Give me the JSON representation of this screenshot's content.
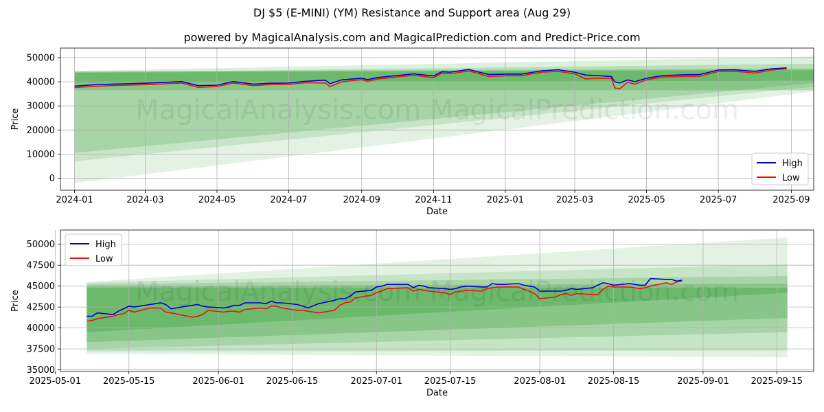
{
  "title": "DJ $5 (E-MINI) (YM) Resistance and Support area (Aug 29)",
  "subtitle": "powered by MagicalAnalysis.com and MagicalPrediction.com and Predict-Price.com",
  "watermark": "MagicalAnalysis.com    MagicalPrediction.com",
  "colors": {
    "high": "#0000cc",
    "low": "#ee1111",
    "band": "#2e9a2e",
    "grid": "#b0b0b0"
  },
  "chart_data": [
    {
      "type": "line",
      "xlabel": "Date",
      "ylabel": "Price",
      "xlim": [
        "2023-12-20",
        "2025-09-20"
      ],
      "ylim": [
        -5000,
        54000
      ],
      "x_ticks": [
        "2024-01",
        "2024-03",
        "2024-05",
        "2024-07",
        "2024-09",
        "2024-11",
        "2025-01",
        "2025-03",
        "2025-05",
        "2025-07",
        "2025-09"
      ],
      "x_tick_dates": [
        "2024-01-01",
        "2024-03-01",
        "2024-05-01",
        "2024-07-01",
        "2024-09-01",
        "2024-11-01",
        "2025-01-01",
        "2025-03-01",
        "2025-05-01",
        "2025-07-01",
        "2025-09-01"
      ],
      "y_ticks": [
        0,
        10000,
        20000,
        30000,
        40000,
        50000
      ],
      "grid": true,
      "legend": "bottom-right",
      "series": [
        {
          "name": "High",
          "x": [
            "2024-01-01",
            "2024-01-15",
            "2024-02-01",
            "2024-02-15",
            "2024-03-01",
            "2024-03-15",
            "2024-04-01",
            "2024-04-15",
            "2024-05-01",
            "2024-05-15",
            "2024-06-01",
            "2024-06-15",
            "2024-07-01",
            "2024-07-15",
            "2024-08-01",
            "2024-08-05",
            "2024-08-15",
            "2024-09-01",
            "2024-09-06",
            "2024-09-15",
            "2024-10-01",
            "2024-10-15",
            "2024-11-01",
            "2024-11-08",
            "2024-11-15",
            "2024-12-01",
            "2024-12-18",
            "2025-01-01",
            "2025-01-15",
            "2025-02-01",
            "2025-02-15",
            "2025-03-01",
            "2025-03-10",
            "2025-03-20",
            "2025-04-01",
            "2025-04-04",
            "2025-04-08",
            "2025-04-15",
            "2025-04-21",
            "2025-05-01",
            "2025-05-15",
            "2025-06-01",
            "2025-06-15",
            "2025-07-01",
            "2025-07-15",
            "2025-08-01",
            "2025-08-15",
            "2025-08-28"
          ],
          "values": [
            38200,
            38700,
            39000,
            39200,
            39400,
            39700,
            40100,
            38400,
            38600,
            40100,
            39000,
            39400,
            39500,
            40200,
            40700,
            39200,
            40800,
            41500,
            40900,
            41800,
            42600,
            43300,
            42400,
            44200,
            44000,
            45100,
            43000,
            43200,
            43200,
            44600,
            45000,
            44000,
            42800,
            42600,
            42200,
            40000,
            39500,
            40800,
            40000,
            41500,
            42600,
            42900,
            43000,
            44900,
            45000,
            44300,
            45400,
            45800
          ]
        },
        {
          "name": "Low",
          "x": [
            "2024-01-01",
            "2024-01-15",
            "2024-02-01",
            "2024-02-15",
            "2024-03-01",
            "2024-03-15",
            "2024-04-01",
            "2024-04-15",
            "2024-05-01",
            "2024-05-15",
            "2024-06-01",
            "2024-06-15",
            "2024-07-01",
            "2024-07-15",
            "2024-08-01",
            "2024-08-05",
            "2024-08-15",
            "2024-09-01",
            "2024-09-06",
            "2024-09-15",
            "2024-10-01",
            "2024-10-15",
            "2024-11-01",
            "2024-11-08",
            "2024-11-15",
            "2024-12-01",
            "2024-12-18",
            "2025-01-01",
            "2025-01-15",
            "2025-02-01",
            "2025-02-15",
            "2025-03-01",
            "2025-03-10",
            "2025-03-20",
            "2025-04-01",
            "2025-04-04",
            "2025-04-08",
            "2025-04-15",
            "2025-04-21",
            "2025-05-01",
            "2025-05-15",
            "2025-06-01",
            "2025-06-15",
            "2025-07-01",
            "2025-07-15",
            "2025-08-01",
            "2025-08-15",
            "2025-08-28"
          ],
          "values": [
            37600,
            38000,
            38400,
            38600,
            38800,
            39100,
            39500,
            37700,
            38000,
            39500,
            38400,
            38800,
            38900,
            39600,
            39500,
            38000,
            40000,
            40900,
            40200,
            41200,
            42000,
            42700,
            41700,
            43600,
            43300,
            44500,
            42200,
            42500,
            42500,
            44000,
            44300,
            43300,
            41200,
            41500,
            41400,
            37500,
            37000,
            39800,
            39000,
            40800,
            42000,
            42200,
            42300,
            44300,
            44400,
            43600,
            44900,
            45400
          ]
        }
      ]
    },
    {
      "type": "line",
      "xlabel": "Date",
      "ylabel": "Price",
      "xlim": [
        "2025-05-02",
        "2025-09-22"
      ],
      "ylim": [
        34800,
        51700
      ],
      "x_ticks": [
        "2025-05-01",
        "2025-05-15",
        "2025-06-01",
        "2025-06-15",
        "2025-07-01",
        "2025-07-15",
        "2025-08-01",
        "2025-08-15",
        "2025-09-01",
        "2025-09-15"
      ],
      "y_ticks": [
        35000,
        37500,
        40000,
        42500,
        45000,
        47500,
        50000
      ],
      "grid": true,
      "legend": "top-left",
      "series": [
        {
          "name": "High",
          "x": [
            "2025-05-07",
            "2025-05-08",
            "2025-05-09",
            "2025-05-12",
            "2025-05-13",
            "2025-05-14",
            "2025-05-15",
            "2025-05-16",
            "2025-05-19",
            "2025-05-20",
            "2025-05-21",
            "2025-05-22",
            "2025-05-23",
            "2025-05-27",
            "2025-05-28",
            "2025-05-29",
            "2025-05-30",
            "2025-06-02",
            "2025-06-03",
            "2025-06-04",
            "2025-06-05",
            "2025-06-06",
            "2025-06-09",
            "2025-06-10",
            "2025-06-11",
            "2025-06-12",
            "2025-06-13",
            "2025-06-16",
            "2025-06-17",
            "2025-06-18",
            "2025-06-20",
            "2025-06-23",
            "2025-06-24",
            "2025-06-25",
            "2025-06-26",
            "2025-06-27",
            "2025-06-30",
            "2025-07-01",
            "2025-07-02",
            "2025-07-03",
            "2025-07-07",
            "2025-07-08",
            "2025-07-09",
            "2025-07-10",
            "2025-07-11",
            "2025-07-14",
            "2025-07-15",
            "2025-07-16",
            "2025-07-17",
            "2025-07-18",
            "2025-07-21",
            "2025-07-22",
            "2025-07-23",
            "2025-07-24",
            "2025-07-25",
            "2025-07-28",
            "2025-07-29",
            "2025-07-30",
            "2025-07-31",
            "2025-08-01",
            "2025-08-04",
            "2025-08-05",
            "2025-08-06",
            "2025-08-07",
            "2025-08-08",
            "2025-08-11",
            "2025-08-12",
            "2025-08-13",
            "2025-08-14",
            "2025-08-15",
            "2025-08-18",
            "2025-08-19",
            "2025-08-20",
            "2025-08-21",
            "2025-08-22",
            "2025-08-25",
            "2025-08-26",
            "2025-08-27",
            "2025-08-28"
          ],
          "values": [
            41400,
            41400,
            41800,
            41600,
            42000,
            42300,
            42600,
            42500,
            42800,
            42900,
            43000,
            42800,
            42300,
            42700,
            42800,
            42600,
            42500,
            42400,
            42500,
            42700,
            42700,
            43000,
            43000,
            42900,
            43200,
            43000,
            43000,
            42800,
            42600,
            42400,
            42900,
            43300,
            43500,
            43500,
            43800,
            44300,
            44500,
            44900,
            45000,
            45200,
            45200,
            44800,
            45100,
            45000,
            44800,
            44700,
            44600,
            44700,
            44900,
            45000,
            44900,
            44900,
            45300,
            45200,
            45200,
            45300,
            45100,
            45000,
            44900,
            44400,
            44400,
            44400,
            44500,
            44700,
            44600,
            44800,
            45100,
            45400,
            45300,
            45100,
            45300,
            45200,
            45100,
            45100,
            45900,
            45800,
            45800,
            45600,
            45700
          ]
        },
        {
          "name": "Low",
          "x": [
            "2025-05-07",
            "2025-05-08",
            "2025-05-09",
            "2025-05-12",
            "2025-05-13",
            "2025-05-14",
            "2025-05-15",
            "2025-05-16",
            "2025-05-19",
            "2025-05-20",
            "2025-05-21",
            "2025-05-22",
            "2025-05-23",
            "2025-05-27",
            "2025-05-28",
            "2025-05-29",
            "2025-05-30",
            "2025-06-02",
            "2025-06-03",
            "2025-06-04",
            "2025-06-05",
            "2025-06-06",
            "2025-06-09",
            "2025-06-10",
            "2025-06-11",
            "2025-06-12",
            "2025-06-13",
            "2025-06-16",
            "2025-06-17",
            "2025-06-18",
            "2025-06-20",
            "2025-06-23",
            "2025-06-24",
            "2025-06-25",
            "2025-06-26",
            "2025-06-27",
            "2025-06-30",
            "2025-07-01",
            "2025-07-02",
            "2025-07-03",
            "2025-07-07",
            "2025-07-08",
            "2025-07-09",
            "2025-07-10",
            "2025-07-11",
            "2025-07-14",
            "2025-07-15",
            "2025-07-16",
            "2025-07-17",
            "2025-07-18",
            "2025-07-21",
            "2025-07-22",
            "2025-07-23",
            "2025-07-24",
            "2025-07-25",
            "2025-07-28",
            "2025-07-29",
            "2025-07-30",
            "2025-07-31",
            "2025-08-01",
            "2025-08-04",
            "2025-08-05",
            "2025-08-06",
            "2025-08-07",
            "2025-08-08",
            "2025-08-11",
            "2025-08-12",
            "2025-08-13",
            "2025-08-14",
            "2025-08-15",
            "2025-08-18",
            "2025-08-19",
            "2025-08-20",
            "2025-08-21",
            "2025-08-22",
            "2025-08-25",
            "2025-08-26",
            "2025-08-27",
            "2025-08-28"
          ],
          "values": [
            40800,
            40900,
            41100,
            41400,
            41600,
            41700,
            42100,
            41900,
            42400,
            42400,
            42400,
            41900,
            41800,
            41300,
            41400,
            41600,
            42100,
            41900,
            42000,
            42000,
            41900,
            42200,
            42400,
            42300,
            42600,
            42600,
            42400,
            42100,
            42100,
            42000,
            41800,
            42100,
            42700,
            43000,
            43100,
            43600,
            43900,
            44200,
            44400,
            44700,
            44800,
            44400,
            44600,
            44500,
            44400,
            44200,
            44000,
            44300,
            44400,
            44500,
            44400,
            44700,
            44800,
            44900,
            44900,
            44900,
            44600,
            44400,
            44100,
            43500,
            43700,
            44000,
            44100,
            43900,
            44100,
            44000,
            44000,
            44600,
            45000,
            44900,
            44900,
            44800,
            44700,
            44800,
            45000,
            45400,
            45200,
            45500,
            45600
          ]
        }
      ]
    }
  ]
}
